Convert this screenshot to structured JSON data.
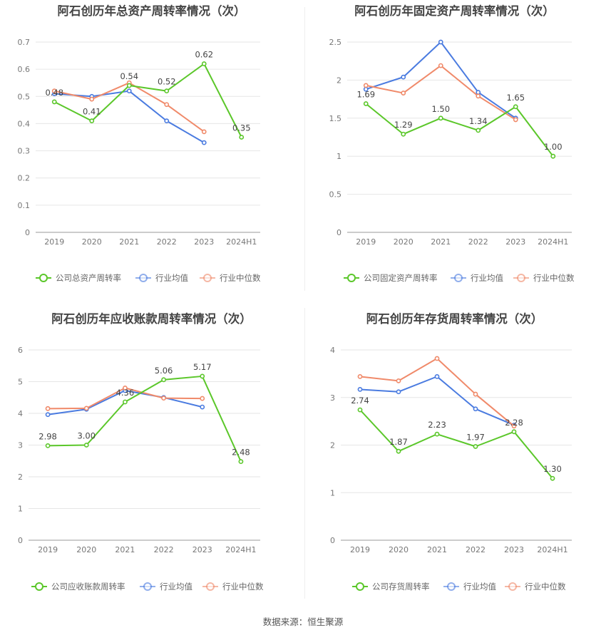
{
  "source": "数据来源：恒生聚源",
  "colors": {
    "company": "#5bc72a",
    "avg": "#4a7be0",
    "median": "#f08a6a"
  },
  "chart_data": [
    {
      "type": "line",
      "title": "阿石创历年总资产周转率情况（次）",
      "categories": [
        "2019",
        "2020",
        "2021",
        "2022",
        "2023",
        "2024H1"
      ],
      "ylim": [
        0,
        0.7
      ],
      "yticks": [
        "0",
        "0.1",
        "0.2",
        "0.3",
        "0.4",
        "0.5",
        "0.6",
        "0.7"
      ],
      "series": [
        {
          "name": "公司总资产周转率",
          "values": [
            0.48,
            0.41,
            0.54,
            0.52,
            0.62,
            0.35
          ],
          "labels": [
            "0.48",
            "0.41",
            "0.54",
            "0.52",
            "0.62",
            "0.35"
          ]
        },
        {
          "name": "行业均值",
          "values": [
            0.51,
            0.5,
            0.52,
            0.41,
            0.33,
            null
          ]
        },
        {
          "name": "行业中位数",
          "values": [
            0.52,
            0.49,
            0.55,
            0.47,
            0.37,
            null
          ]
        }
      ]
    },
    {
      "type": "line",
      "title": "阿石创历年固定资产周转率情况（次）",
      "categories": [
        "2019",
        "2020",
        "2021",
        "2022",
        "2023",
        "2024H1"
      ],
      "ylim": [
        0,
        2.5
      ],
      "yticks": [
        "0",
        "0.5",
        "1",
        "1.5",
        "2",
        "2.5"
      ],
      "series": [
        {
          "name": "公司固定资产周转率",
          "values": [
            1.69,
            1.29,
            1.5,
            1.34,
            1.65,
            1.0
          ],
          "labels": [
            "1.69",
            "1.29",
            "1.50",
            "1.34",
            "1.65",
            "1.00"
          ]
        },
        {
          "name": "行业均值",
          "values": [
            1.88,
            2.04,
            2.5,
            1.84,
            1.5,
            null
          ]
        },
        {
          "name": "行业中位数",
          "values": [
            1.93,
            1.83,
            2.19,
            1.79,
            1.48,
            null
          ]
        }
      ]
    },
    {
      "type": "line",
      "title": "阿石创历年应收账款周转率情况（次）",
      "categories": [
        "2019",
        "2020",
        "2021",
        "2022",
        "2023",
        "2024H1"
      ],
      "ylim": [
        0,
        6
      ],
      "yticks": [
        "0",
        "1",
        "2",
        "3",
        "4",
        "5",
        "6"
      ],
      "series": [
        {
          "name": "公司应收账款周转率",
          "values": [
            2.98,
            3.0,
            4.36,
            5.06,
            5.17,
            2.48
          ],
          "labels": [
            "2.98",
            "3.00",
            "4.36",
            "5.06",
            "5.17",
            "2.48"
          ]
        },
        {
          "name": "行业均值",
          "values": [
            3.96,
            4.13,
            4.72,
            4.5,
            4.2,
            null
          ]
        },
        {
          "name": "行业中位数",
          "values": [
            4.15,
            4.16,
            4.8,
            4.48,
            4.47,
            null
          ]
        }
      ]
    },
    {
      "type": "line",
      "title": "阿石创历年存货周转率情况（次）",
      "categories": [
        "2019",
        "2020",
        "2021",
        "2022",
        "2023",
        "2024H1"
      ],
      "ylim": [
        0,
        4
      ],
      "yticks": [
        "0",
        "1",
        "2",
        "3",
        "4"
      ],
      "series": [
        {
          "name": "公司存货周转率",
          "values": [
            2.74,
            1.87,
            2.23,
            1.97,
            2.28,
            1.3
          ],
          "labels": [
            "2.74",
            "1.87",
            "2.23",
            "1.97",
            "2.28",
            "1.30"
          ]
        },
        {
          "name": "行业均值",
          "values": [
            3.17,
            3.12,
            3.44,
            2.76,
            2.42,
            null
          ]
        },
        {
          "name": "行业中位数",
          "values": [
            3.44,
            3.35,
            3.82,
            3.07,
            2.4,
            null
          ]
        }
      ]
    }
  ]
}
